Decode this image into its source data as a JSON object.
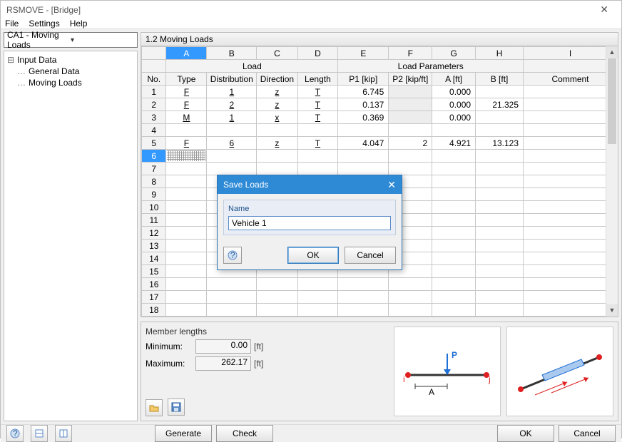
{
  "window": {
    "title": "RSMOVE - [Bridge]"
  },
  "menu": {
    "file": "File",
    "settings": "Settings",
    "help": "Help"
  },
  "combo": {
    "value": "CA1 - Moving Loads"
  },
  "tree": {
    "root": "Input Data",
    "children": [
      "General Data",
      "Moving Loads"
    ]
  },
  "panel": {
    "title": "1.2 Moving Loads"
  },
  "grid": {
    "col_letters": [
      "A",
      "B",
      "C",
      "D",
      "E",
      "F",
      "G",
      "H",
      "I"
    ],
    "group1": "Load",
    "group2": "Load Parameters",
    "headers": [
      "No.",
      "Type",
      "Distribution",
      "Direction",
      "Length",
      "P1 [kip]",
      "P2 [kip/ft]",
      "A [ft]",
      "B [ft]",
      "Comment"
    ],
    "rows": [
      {
        "no": "1",
        "type": "F",
        "dist": "1",
        "dir": "z",
        "len": "T",
        "p1": "6.745",
        "p2": "",
        "a": "0.000",
        "b": "",
        "c": "",
        "p2grey": true
      },
      {
        "no": "2",
        "type": "F",
        "dist": "2",
        "dir": "z",
        "len": "T",
        "p1": "0.137",
        "p2": "",
        "a": "0.000",
        "b": "21.325",
        "c": "",
        "p2grey": true
      },
      {
        "no": "3",
        "type": "M",
        "dist": "1",
        "dir": "x",
        "len": "T",
        "p1": "0.369",
        "p2": "",
        "a": "0.000",
        "b": "",
        "c": "",
        "p2grey": true
      },
      {
        "no": "4",
        "type": "",
        "dist": "",
        "dir": "",
        "len": "",
        "p1": "",
        "p2": "",
        "a": "",
        "b": "",
        "c": ""
      },
      {
        "no": "5",
        "type": "F",
        "dist": "6",
        "dir": "z",
        "len": "T",
        "p1": "4.047",
        "p2": "2",
        "a": "4.921",
        "b": "13.123",
        "c": ""
      }
    ],
    "selected_row": "6",
    "empty_rows": [
      7,
      8,
      9,
      10,
      11,
      12,
      13,
      14,
      15,
      16,
      17,
      18
    ]
  },
  "member": {
    "title": "Member lengths",
    "min_label": "Minimum:",
    "min_value": "0.00",
    "unit": "[ft]",
    "max_label": "Maximum:",
    "max_value": "262.17"
  },
  "diagram1": {
    "p_label": "P",
    "a_label": "A",
    "i_label": "i",
    "j_label": "j"
  },
  "footer": {
    "generate": "Generate",
    "check": "Check",
    "ok": "OK",
    "cancel": "Cancel"
  },
  "dialog": {
    "title": "Save Loads",
    "name_label": "Name",
    "value": "Vehicle 1",
    "ok": "OK",
    "cancel": "Cancel"
  },
  "colors": {
    "accent": "#2f8ad6"
  }
}
